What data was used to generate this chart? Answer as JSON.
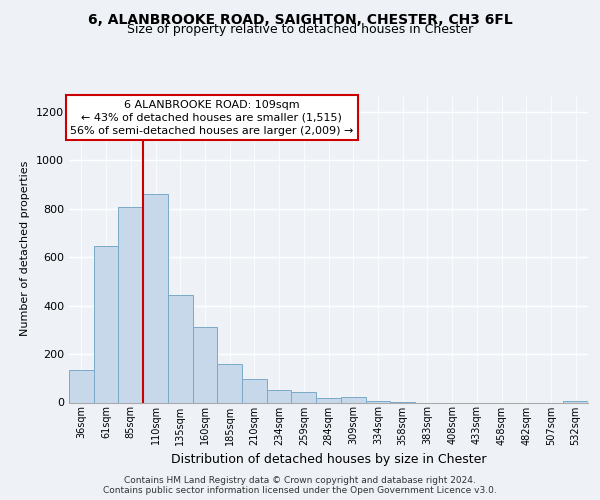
{
  "title_line1": "6, ALANBROOKE ROAD, SAIGHTON, CHESTER, CH3 6FL",
  "title_line2": "Size of property relative to detached houses in Chester",
  "xlabel": "Distribution of detached houses by size in Chester",
  "ylabel": "Number of detached properties",
  "bar_labels": [
    "36sqm",
    "61sqm",
    "85sqm",
    "110sqm",
    "135sqm",
    "160sqm",
    "185sqm",
    "210sqm",
    "234sqm",
    "259sqm",
    "284sqm",
    "309sqm",
    "334sqm",
    "358sqm",
    "383sqm",
    "408sqm",
    "433sqm",
    "458sqm",
    "482sqm",
    "507sqm",
    "532sqm"
  ],
  "bar_values": [
    135,
    645,
    808,
    862,
    445,
    310,
    158,
    95,
    52,
    42,
    18,
    22,
    8,
    2,
    0,
    0,
    0,
    0,
    0,
    0,
    5
  ],
  "bar_color": "#c8d8eb",
  "bar_edge_color": "#7aaac8",
  "vline_color": "#cc0000",
  "vline_index": 3,
  "annotation_line1": "6 ALANBROOKE ROAD: 109sqm",
  "annotation_line2": "← 43% of detached houses are smaller (1,515)",
  "annotation_line3": "56% of semi-detached houses are larger (2,009) →",
  "annotation_box_edgecolor": "#cc0000",
  "annotation_box_facecolor": "#ffffff",
  "footer_text": "Contains HM Land Registry data © Crown copyright and database right 2024.\nContains public sector information licensed under the Open Government Licence v3.0.",
  "ylim": [
    0,
    1270
  ],
  "yticks": [
    0,
    200,
    400,
    600,
    800,
    1000,
    1200
  ],
  "background_color": "#eef2f7",
  "plot_bg_color": "#eef2f7",
  "grid_color": "#ffffff",
  "title1_fontsize": 10,
  "title2_fontsize": 9
}
